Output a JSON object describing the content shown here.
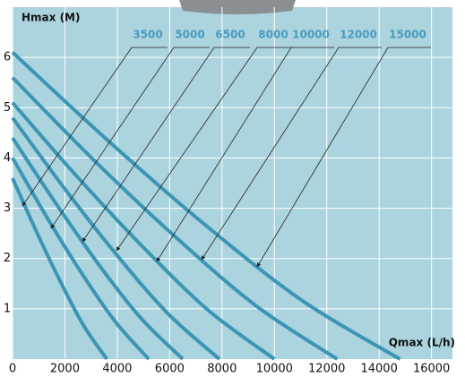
{
  "chart_data": {
    "type": "line",
    "y_label": "Hmax (M)",
    "x_label": "Qmax (L/h)",
    "xlim": [
      0,
      16800
    ],
    "ylim": [
      0,
      7
    ],
    "xticks": [
      0,
      2000,
      4000,
      6000,
      8000,
      10000,
      12000,
      14000,
      16000
    ],
    "yticks": [
      1,
      2,
      3,
      4,
      5,
      6
    ],
    "grid": true,
    "series": [
      {
        "name": "3500",
        "color": "#3c95b5",
        "x": [
          0,
          900,
          1800,
          2700,
          3600
        ],
        "values": [
          3.6,
          2.55,
          1.57,
          0.68,
          0
        ]
      },
      {
        "name": "5000",
        "color": "#3c95b5",
        "x": [
          0,
          1300,
          2600,
          3900,
          5200
        ],
        "values": [
          4.0,
          2.83,
          1.74,
          0.76,
          0
        ]
      },
      {
        "name": "6500",
        "color": "#3c95b5",
        "x": [
          0,
          1625,
          3250,
          4875,
          6500
        ],
        "values": [
          4.4,
          3.12,
          1.91,
          0.83,
          0
        ]
      },
      {
        "name": "8000",
        "color": "#3c95b5",
        "x": [
          0,
          1975,
          3950,
          5925,
          7900
        ],
        "values": [
          4.8,
          3.4,
          2.09,
          0.91,
          0
        ]
      },
      {
        "name": "10000",
        "color": "#3c95b5",
        "x": [
          0,
          2500,
          5000,
          7500,
          10000
        ],
        "values": [
          5.1,
          3.61,
          2.22,
          0.96,
          0
        ]
      },
      {
        "name": "12000",
        "color": "#3c95b5",
        "x": [
          0,
          3100,
          6200,
          9300,
          12400
        ],
        "values": [
          5.6,
          3.96,
          2.44,
          1.06,
          0
        ]
      },
      {
        "name": "15000",
        "color": "#3c95b5",
        "x": [
          0,
          3700,
          7400,
          11100,
          14800
        ],
        "values": [
          6.1,
          4.32,
          2.65,
          1.15,
          0
        ]
      }
    ]
  }
}
